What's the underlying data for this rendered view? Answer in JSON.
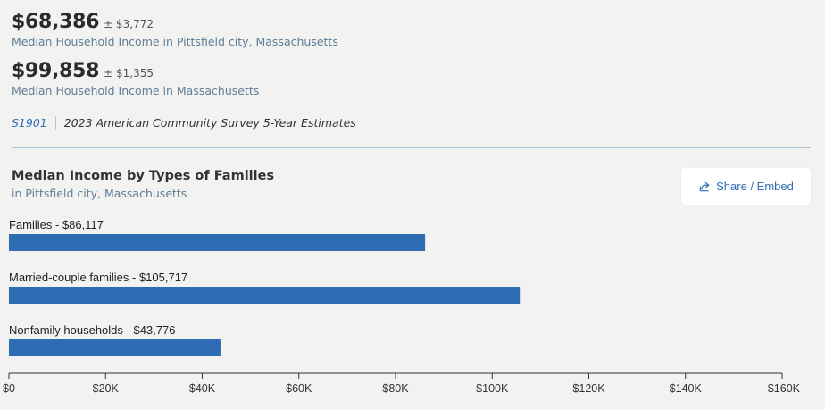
{
  "stats": [
    {
      "value": "$68,386",
      "moe": "± $3,772",
      "label": "Median Household Income in Pittsfield city, Massachusetts"
    },
    {
      "value": "$99,858",
      "moe": "± $1,355",
      "label": "Median Household Income in Massachusetts"
    }
  ],
  "source": {
    "code": "S1901",
    "description": "2023 American Community Survey 5-Year Estimates"
  },
  "share": {
    "label": "Share / Embed"
  },
  "colors": {
    "bar": "#2e6db4",
    "accent": "#2e6db4",
    "label": "#5f7d96"
  },
  "chart_data": {
    "type": "bar",
    "orientation": "horizontal",
    "title": "Median Income by Types of Families",
    "subtitle": "in Pittsfield city, Massachusetts",
    "categories": [
      "Families",
      "Married-couple families",
      "Nonfamily households"
    ],
    "values": [
      86117,
      105717,
      43776
    ],
    "labels": [
      "Families - $86,117",
      "Married-couple families - $105,717",
      "Nonfamily households - $43,776"
    ],
    "xlim": [
      0,
      160000
    ],
    "ticks": [
      0,
      20000,
      40000,
      60000,
      80000,
      100000,
      120000,
      140000,
      160000
    ],
    "tick_labels": [
      "$0",
      "$20K",
      "$40K",
      "$60K",
      "$80K",
      "$100K",
      "$120K",
      "$140K",
      "$160K"
    ],
    "xlabel": "",
    "ylabel": "",
    "grid": false
  }
}
